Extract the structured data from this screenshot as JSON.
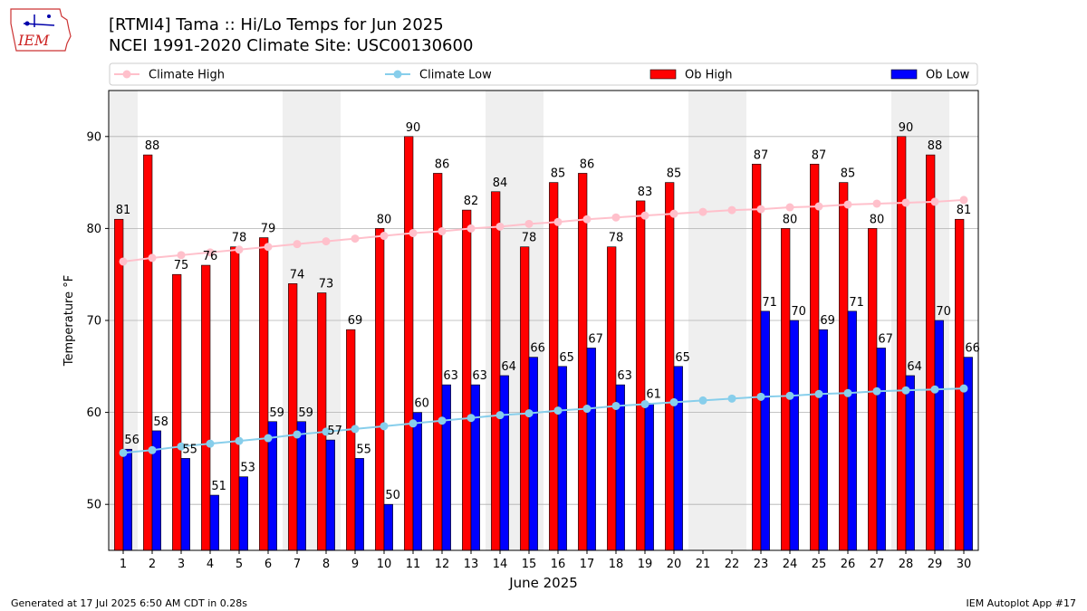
{
  "header": {
    "title_line1": "[RTMI4] Tama :: Hi/Lo Temps for Jun 2025",
    "title_line2": "NCEI 1991-2020 Climate Site: USC00130600",
    "logo_text": "IEM"
  },
  "footer": {
    "left": "Generated at 17 Jul 2025 6:50 AM CDT in 0.28s",
    "right": "IEM Autoplot App #17"
  },
  "colors": {
    "ob_high": "#ff0000",
    "ob_low": "#0000ff",
    "climate_high": "#ffc0cb",
    "climate_low": "#87ceeb",
    "weekend_band": "#efefef"
  },
  "chart_data": {
    "type": "bar",
    "xlabel": "June 2025",
    "ylabel": "Temperature °F",
    "ylim": [
      45,
      95
    ],
    "yticks": [
      50,
      60,
      70,
      80,
      90
    ],
    "grid": true,
    "legend_position": "top",
    "days": [
      1,
      2,
      3,
      4,
      5,
      6,
      7,
      8,
      9,
      10,
      11,
      12,
      13,
      14,
      15,
      16,
      17,
      18,
      19,
      20,
      21,
      22,
      23,
      24,
      25,
      26,
      27,
      28,
      29,
      30
    ],
    "shaded_days": [
      1,
      7,
      8,
      14,
      15,
      21,
      22,
      28,
      29
    ],
    "legend": [
      "Climate High",
      "Climate Low",
      "Ob High",
      "Ob Low"
    ],
    "series": [
      {
        "name": "Ob High",
        "kind": "bar",
        "values": [
          81,
          88,
          75,
          76,
          78,
          79,
          74,
          73,
          69,
          80,
          90,
          86,
          82,
          84,
          78,
          85,
          86,
          78,
          83,
          85,
          null,
          null,
          87,
          80,
          87,
          85,
          80,
          90,
          88,
          81
        ]
      },
      {
        "name": "Ob Low",
        "kind": "bar",
        "values": [
          56,
          58,
          55,
          51,
          53,
          59,
          59,
          57,
          55,
          50,
          60,
          63,
          63,
          64,
          66,
          65,
          67,
          63,
          61,
          65,
          null,
          null,
          71,
          70,
          69,
          71,
          67,
          64,
          70,
          66
        ]
      },
      {
        "name": "Climate High",
        "kind": "line",
        "values": [
          76.4,
          76.8,
          77.1,
          77.4,
          77.7,
          78.0,
          78.3,
          78.6,
          78.9,
          79.2,
          79.5,
          79.7,
          80.0,
          80.2,
          80.5,
          80.7,
          81.0,
          81.2,
          81.4,
          81.6,
          81.8,
          82.0,
          82.1,
          82.3,
          82.4,
          82.6,
          82.7,
          82.8,
          82.9,
          83.1
        ]
      },
      {
        "name": "Climate Low",
        "kind": "line",
        "values": [
          55.6,
          55.9,
          56.3,
          56.6,
          56.9,
          57.2,
          57.6,
          57.9,
          58.2,
          58.5,
          58.8,
          59.1,
          59.4,
          59.7,
          59.9,
          60.2,
          60.4,
          60.7,
          60.9,
          61.1,
          61.3,
          61.5,
          61.7,
          61.8,
          62.0,
          62.1,
          62.3,
          62.4,
          62.5,
          62.6
        ]
      }
    ]
  }
}
